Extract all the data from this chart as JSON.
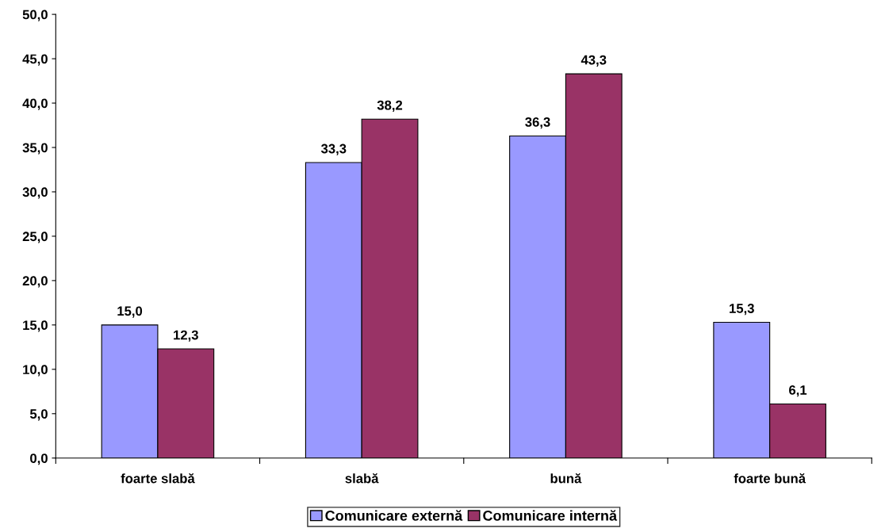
{
  "chart_data": {
    "type": "bar",
    "categories": [
      "foarte slabă",
      "slabă",
      "bună",
      "foarte bună"
    ],
    "series": [
      {
        "name": "Comunicare externă",
        "color": "#9999ff",
        "values": [
          15.0,
          33.3,
          36.3,
          15.3
        ],
        "value_labels": [
          "15,0",
          "33,3",
          "36,3",
          "15,3"
        ]
      },
      {
        "name": "Comunicare internă",
        "color": "#993366",
        "values": [
          12.3,
          38.2,
          43.3,
          6.1
        ],
        "value_labels": [
          "12,3",
          "38,2",
          "43,3",
          "6,1"
        ]
      }
    ],
    "ylim": [
      0,
      50
    ],
    "yticks": [
      {
        "value": 0,
        "label": "0,0"
      },
      {
        "value": 5,
        "label": "5,0"
      },
      {
        "value": 10,
        "label": "10,0"
      },
      {
        "value": 15,
        "label": "15,0"
      },
      {
        "value": 20,
        "label": "20,0"
      },
      {
        "value": 25,
        "label": "25,0"
      },
      {
        "value": 30,
        "label": "30,0"
      },
      {
        "value": 35,
        "label": "35,0"
      },
      {
        "value": 40,
        "label": "40,0"
      },
      {
        "value": 45,
        "label": "45,0"
      },
      {
        "value": 50,
        "label": "50,0"
      }
    ],
    "grid": false,
    "legend": "bottom"
  }
}
